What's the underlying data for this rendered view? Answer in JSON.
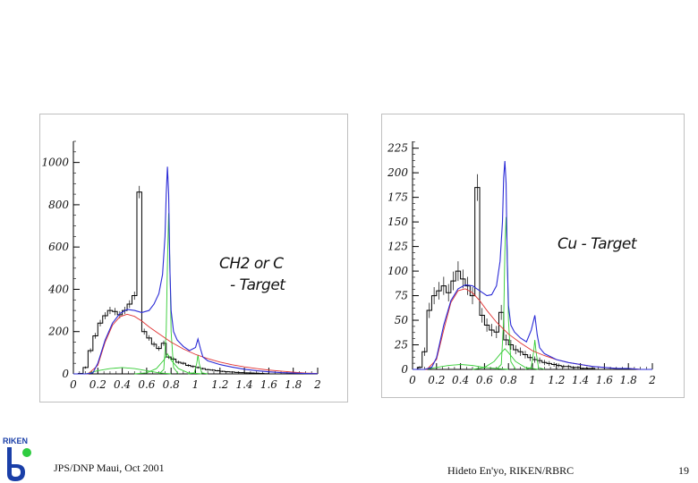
{
  "footer": {
    "left": "JPS/DNP Maui, Oct 2001",
    "right": "Hideto En'yo, RIKEN/RBRC",
    "page": "19"
  },
  "logo": {
    "text": "RIKEN",
    "icon": "riken-logo-icon",
    "colors": {
      "blue": "#1a3fa8",
      "green": "#2ecc40"
    }
  },
  "colors": {
    "histogram": "#000000",
    "total_fit": "#2b2bd6",
    "background_fit": "#e03232",
    "components": "#33cc33",
    "axis": "#000000"
  },
  "chart_data": [
    {
      "type": "line",
      "annotation": [
        "CH2 or C",
        "- Target"
      ],
      "xlim": [
        0,
        2
      ],
      "ylim": [
        0,
        1100
      ],
      "x_ticks": [
        0,
        0.2,
        0.4,
        0.6,
        0.8,
        1,
        1.2,
        1.4,
        1.6,
        1.8,
        2
      ],
      "x_tick_labels": [
        "0",
        "0.2",
        "0.4",
        "0.6",
        "0.8",
        "1",
        "1.2",
        "1.4",
        "1.6",
        "1.8",
        "2"
      ],
      "y_ticks": [
        0,
        200,
        400,
        600,
        800,
        1000
      ],
      "y_tick_labels": [
        "0",
        "200",
        "400",
        "600",
        "800",
        "1000"
      ],
      "grid": false,
      "bin_width": 0.04,
      "histogram": [
        0,
        2,
        30,
        110,
        180,
        240,
        275,
        300,
        295,
        280,
        300,
        330,
        370,
        860,
        200,
        170,
        140,
        120,
        145,
        80,
        70,
        55,
        50,
        40,
        35,
        30,
        25,
        20,
        18,
        15,
        12,
        10,
        9,
        7,
        6,
        5,
        4,
        3,
        2,
        1
      ],
      "series": [
        {
          "kind": "total_fit",
          "x": [
            0.0,
            0.1,
            0.16,
            0.2,
            0.26,
            0.32,
            0.38,
            0.44,
            0.5,
            0.56,
            0.62,
            0.66,
            0.7,
            0.73,
            0.75,
            0.76,
            0.77,
            0.78,
            0.79,
            0.8,
            0.82,
            0.85,
            0.9,
            0.95,
            1.0,
            1.02,
            1.04,
            1.06,
            1.1,
            1.2,
            1.3,
            1.4,
            1.5,
            1.6,
            1.7,
            1.8,
            1.9,
            2.0
          ],
          "y": [
            0,
            0,
            5,
            50,
            160,
            240,
            285,
            305,
            300,
            290,
            300,
            330,
            380,
            470,
            650,
            850,
            980,
            850,
            500,
            300,
            200,
            160,
            130,
            110,
            125,
            165,
            120,
            80,
            62,
            44,
            32,
            22,
            15,
            10,
            6,
            4,
            2,
            1
          ]
        },
        {
          "kind": "background",
          "x": [
            0.0,
            0.12,
            0.2,
            0.26,
            0.32,
            0.38,
            0.44,
            0.5,
            0.56,
            0.62,
            0.7,
            0.8,
            0.9,
            1.0,
            1.1,
            1.2,
            1.3,
            1.4,
            1.5,
            1.6,
            1.7,
            1.8,
            1.9,
            2.0
          ],
          "y": [
            0,
            0,
            40,
            150,
            230,
            270,
            282,
            272,
            250,
            222,
            190,
            150,
            118,
            92,
            72,
            56,
            43,
            33,
            25,
            18,
            13,
            8,
            4,
            2
          ]
        },
        {
          "kind": "omega",
          "x": [
            0.7,
            0.74,
            0.76,
            0.77,
            0.78,
            0.79,
            0.8,
            0.82,
            0.86
          ],
          "y": [
            0,
            20,
            200,
            520,
            760,
            520,
            200,
            30,
            0
          ]
        },
        {
          "kind": "rho",
          "x": [
            0.5,
            0.6,
            0.68,
            0.74,
            0.77,
            0.8,
            0.86,
            0.94,
            1.05
          ],
          "y": [
            0,
            5,
            25,
            65,
            95,
            65,
            25,
            5,
            0
          ]
        },
        {
          "kind": "phi",
          "x": [
            0.94,
            0.99,
            1.01,
            1.02,
            1.03,
            1.05,
            1.1
          ],
          "y": [
            0,
            5,
            50,
            90,
            50,
            5,
            0
          ]
        },
        {
          "kind": "low_mass",
          "x": [
            0.1,
            0.2,
            0.3,
            0.4,
            0.5,
            0.6,
            0.7,
            0.8
          ],
          "y": [
            0,
            15,
            25,
            30,
            25,
            15,
            5,
            0
          ]
        }
      ]
    },
    {
      "type": "line",
      "annotation": [
        "Cu - Target"
      ],
      "xlim": [
        0,
        2
      ],
      "ylim": [
        0,
        232
      ],
      "x_ticks": [
        0,
        0.2,
        0.4,
        0.6,
        0.8,
        1,
        1.2,
        1.4,
        1.6,
        1.8,
        2
      ],
      "x_tick_labels": [
        "0",
        "0.2",
        "0.4",
        "0.6",
        "0.8",
        "1",
        "1.2",
        "1.4",
        "1.6",
        "1.8",
        "2"
      ],
      "y_ticks": [
        0,
        25,
        50,
        75,
        100,
        125,
        150,
        175,
        200,
        225
      ],
      "y_tick_labels": [
        "0",
        "25",
        "50",
        "75",
        "100",
        "125",
        "150",
        "175",
        "200",
        "225"
      ],
      "grid": false,
      "bin_width": 0.04,
      "histogram": [
        0,
        2,
        18,
        60,
        75,
        80,
        85,
        78,
        90,
        100,
        92,
        85,
        75,
        185,
        55,
        45,
        40,
        38,
        58,
        30,
        25,
        20,
        18,
        15,
        12,
        10,
        9,
        7,
        6,
        5,
        4,
        3,
        3,
        2,
        2,
        1,
        1,
        1,
        0,
        0
      ],
      "series": [
        {
          "kind": "total_fit",
          "x": [
            0.0,
            0.1,
            0.16,
            0.2,
            0.26,
            0.32,
            0.38,
            0.44,
            0.5,
            0.56,
            0.62,
            0.66,
            0.7,
            0.73,
            0.75,
            0.76,
            0.77,
            0.78,
            0.79,
            0.8,
            0.82,
            0.85,
            0.9,
            0.95,
            0.99,
            1.02,
            1.04,
            1.06,
            1.1,
            1.2,
            1.3,
            1.4,
            1.5,
            1.6,
            1.7,
            1.8,
            1.9,
            2.0
          ],
          "y": [
            0,
            0,
            2,
            12,
            45,
            70,
            82,
            86,
            85,
            80,
            75,
            76,
            85,
            110,
            150,
            195,
            212,
            190,
            110,
            65,
            45,
            38,
            32,
            28,
            40,
            55,
            35,
            22,
            16,
            10,
            7,
            5,
            3,
            2,
            1,
            1,
            0,
            0
          ]
        },
        {
          "kind": "background",
          "x": [
            0.0,
            0.12,
            0.2,
            0.26,
            0.32,
            0.38,
            0.44,
            0.5,
            0.56,
            0.62,
            0.7,
            0.8,
            0.9,
            1.0,
            1.1,
            1.2,
            1.3,
            1.4,
            1.5,
            1.6,
            1.7,
            1.8,
            1.9,
            2.0
          ],
          "y": [
            0,
            0,
            10,
            40,
            68,
            80,
            82,
            78,
            70,
            60,
            48,
            36,
            27,
            19,
            14,
            10,
            7,
            5,
            3,
            2,
            1,
            1,
            0,
            0
          ]
        },
        {
          "kind": "omega",
          "x": [
            0.7,
            0.74,
            0.76,
            0.77,
            0.78,
            0.79,
            0.8,
            0.82,
            0.86
          ],
          "y": [
            0,
            5,
            50,
            120,
            155,
            120,
            50,
            8,
            0
          ]
        },
        {
          "kind": "rho",
          "x": [
            0.5,
            0.6,
            0.68,
            0.74,
            0.77,
            0.8,
            0.86,
            0.94,
            1.05
          ],
          "y": [
            0,
            2,
            8,
            17,
            21,
            17,
            8,
            2,
            0
          ]
        },
        {
          "kind": "phi",
          "x": [
            0.94,
            0.99,
            1.01,
            1.02,
            1.03,
            1.05,
            1.1
          ],
          "y": [
            0,
            2,
            18,
            30,
            18,
            2,
            0
          ]
        },
        {
          "kind": "low_mass",
          "x": [
            0.1,
            0.2,
            0.3,
            0.4,
            0.5,
            0.6,
            0.7,
            0.8
          ],
          "y": [
            0,
            2,
            4,
            5,
            4,
            2,
            1,
            0
          ]
        }
      ]
    }
  ]
}
